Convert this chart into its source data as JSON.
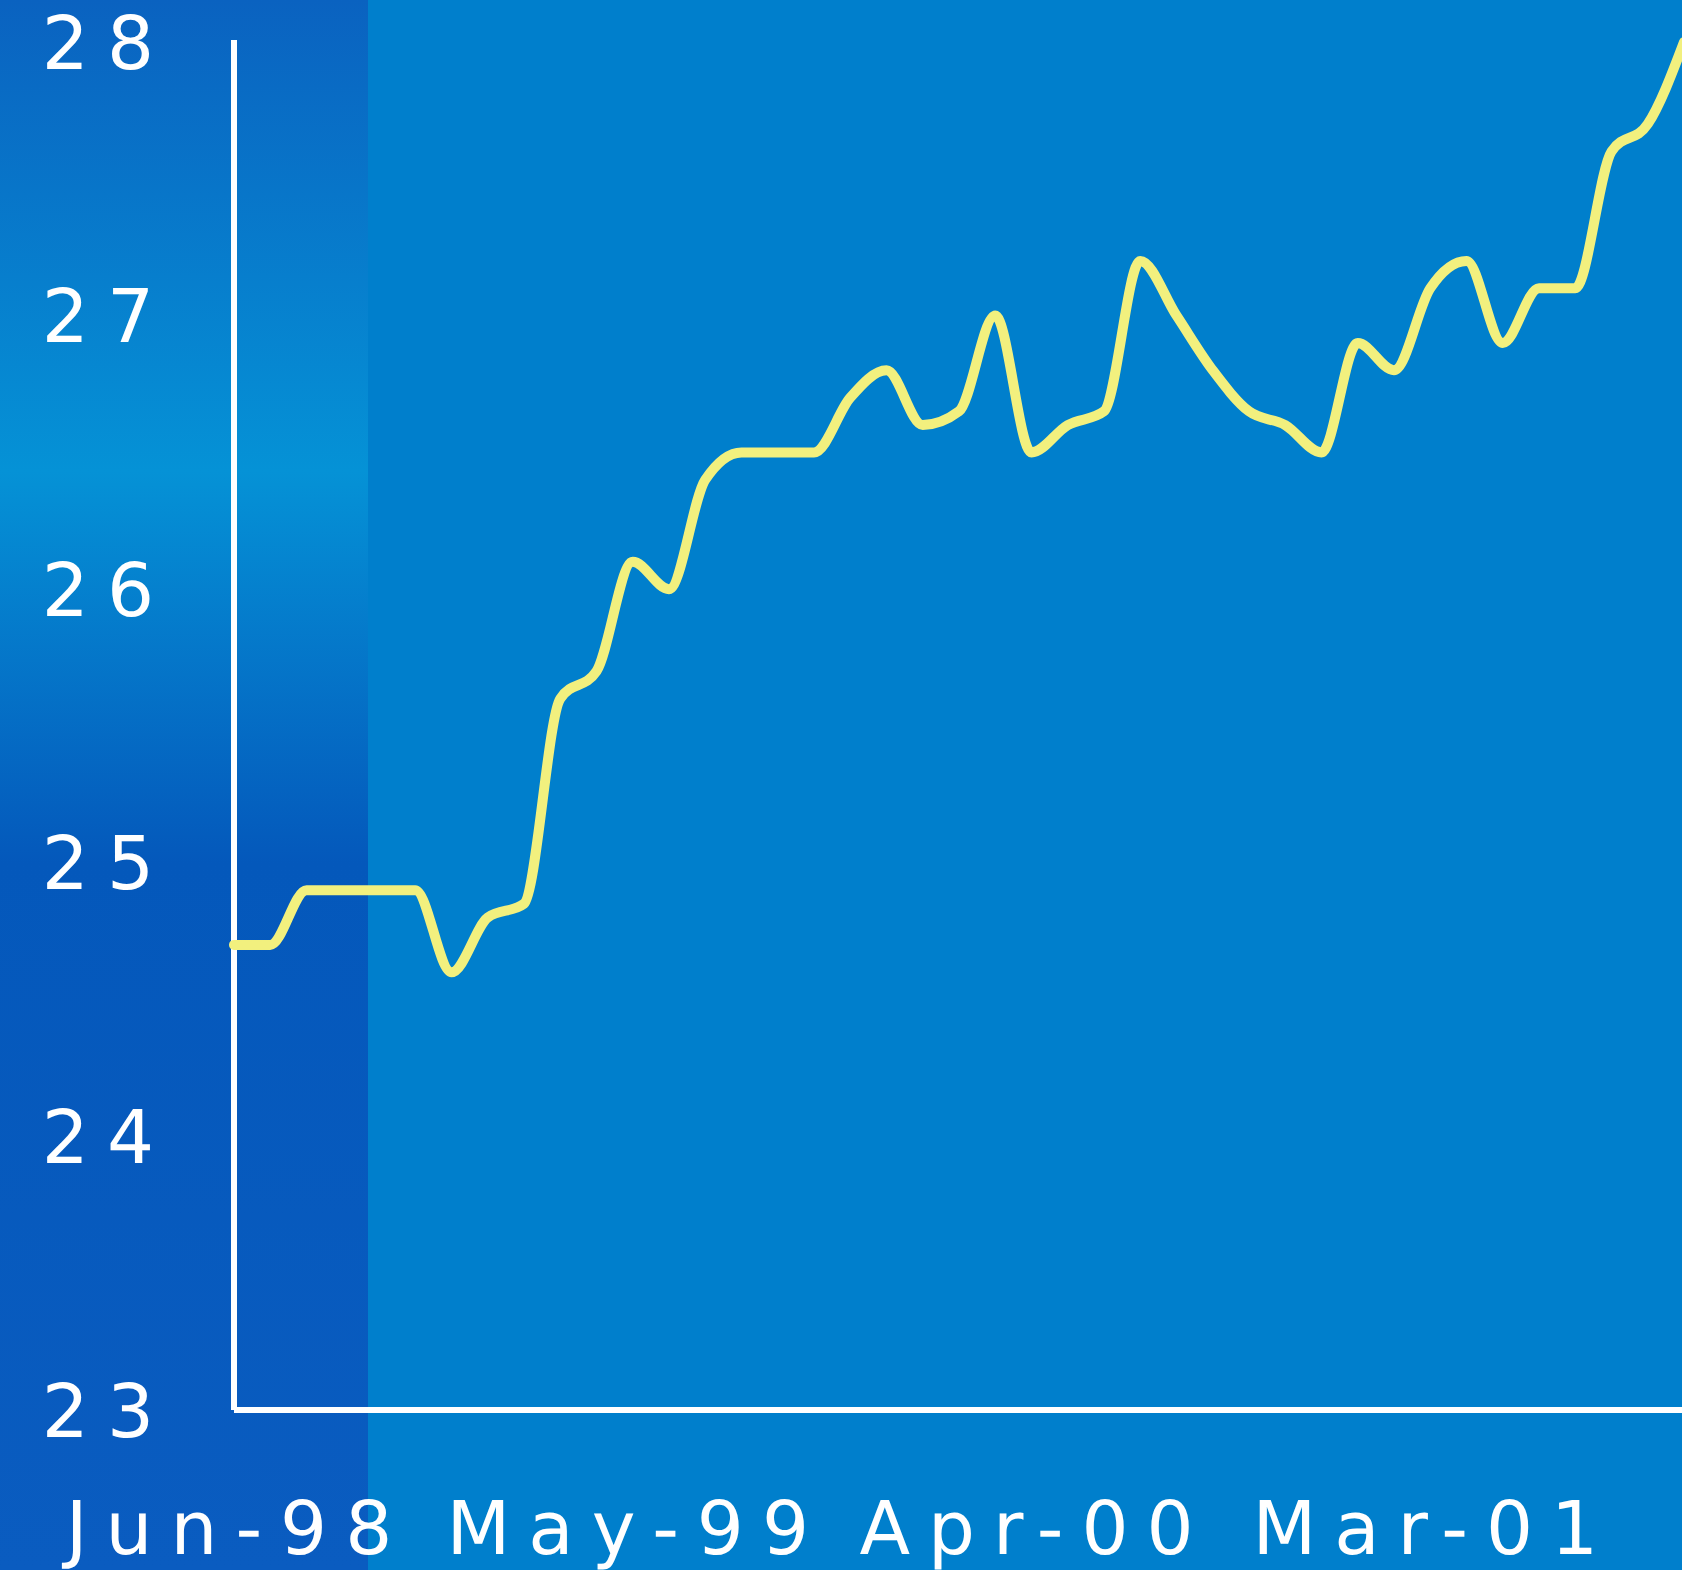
{
  "chart_data": {
    "type": "line",
    "categories": [
      "Jun-98",
      null,
      null,
      null,
      null,
      null,
      null,
      null,
      null,
      null,
      null,
      "May-99",
      null,
      null,
      null,
      null,
      null,
      null,
      null,
      null,
      null,
      null,
      "Apr-00",
      null,
      null,
      null,
      null,
      null,
      null,
      null,
      null,
      null,
      null,
      "Mar-01",
      null,
      null,
      null,
      null,
      null,
      null,
      null
    ],
    "series": [
      {
        "color": "#f2f07e",
        "values": [
          24.7,
          24.7,
          24.9,
          24.9,
          24.9,
          24.9,
          24.6,
          24.8,
          24.85,
          25.6,
          25.7,
          26.1,
          26.0,
          26.4,
          26.5,
          26.5,
          26.5,
          26.7,
          26.8,
          26.6,
          26.65,
          27.0,
          26.5,
          26.6,
          26.65,
          27.2,
          27.0,
          26.8,
          26.65,
          26.6,
          26.5,
          26.9,
          26.8,
          27.1,
          27.2,
          26.9,
          27.1,
          27.1,
          27.6,
          27.7,
          28.0
        ]
      }
    ],
    "ylim": [
      23,
      28
    ],
    "yticks": [
      23,
      24,
      25,
      26,
      27,
      28
    ],
    "line_style": "solid"
  }
}
